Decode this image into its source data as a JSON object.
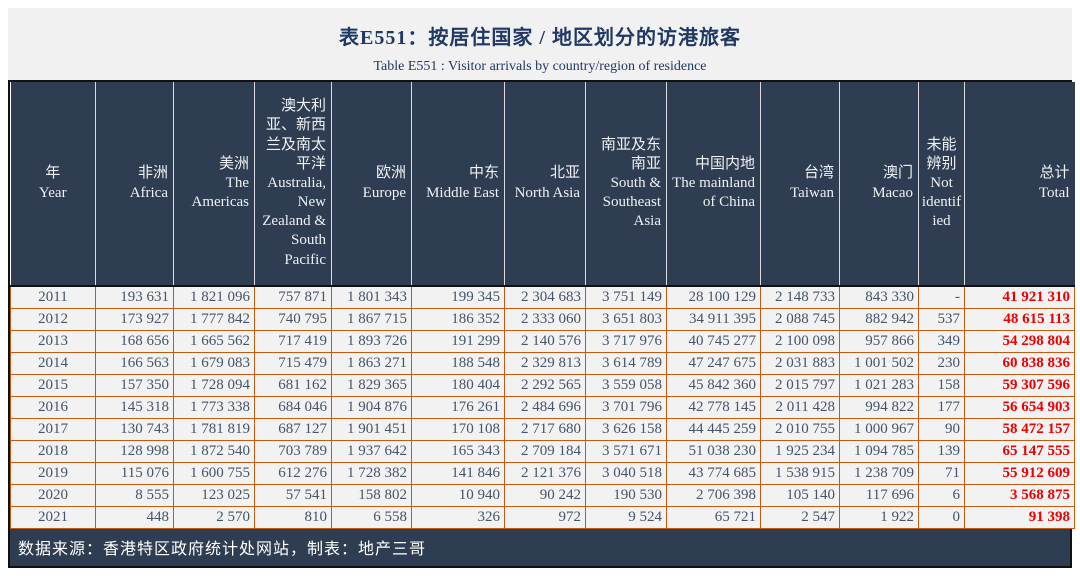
{
  "title": "表E551：按居住国家 / 地区划分的访港旅客",
  "subtitle": "Table E551 : Visitor arrivals by country/region of residence",
  "footer": {
    "text": "数据来源：香港特区政府统计处网站，制表：地产三哥"
  },
  "colors": {
    "header_bg": "#2e3d51",
    "cell_border_orange": "#c55a11",
    "total_text_red": "#ee0000",
    "body_text": "#44546a",
    "title_text": "#1f3864",
    "row_bg": "#f2f2f2",
    "frame_black": "#111111"
  },
  "chart_data": {
    "type": "table",
    "title": "表E551：按居住国家 / 地区划分的访港旅客 — Table E551 : Visitor arrivals by country/region of residence",
    "columns": [
      {
        "zh": "年",
        "en": "Year"
      },
      {
        "zh": "非洲",
        "en": "Africa"
      },
      {
        "zh": "美洲",
        "en": "The Americas"
      },
      {
        "zh": "澳大利亚、新西兰及南太平洋",
        "en": "Australia, New Zealand & South Pacific"
      },
      {
        "zh": "欧洲",
        "en": "Europe"
      },
      {
        "zh": "中东",
        "en": "Middle East"
      },
      {
        "zh": "北亚",
        "en": "North Asia"
      },
      {
        "zh": "南亚及东南亚",
        "en": "South & Southeast Asia"
      },
      {
        "zh": "中国内地",
        "en": "The mainland of China"
      },
      {
        "zh": "台湾",
        "en": "Taiwan"
      },
      {
        "zh": "澳门",
        "en": "Macao"
      },
      {
        "zh": "未能辨别",
        "en": "Not identified"
      },
      {
        "zh": "总计",
        "en": "Total"
      }
    ],
    "rows": [
      [
        "2011",
        "193 631",
        "1 821 096",
        "757 871",
        "1 801 343",
        "199 345",
        "2 304 683",
        "3 751 149",
        "28 100 129",
        "2 148 733",
        "843 330",
        "-",
        "41 921 310"
      ],
      [
        "2012",
        "173 927",
        "1 777 842",
        "740 795",
        "1 867 715",
        "186 352",
        "2 333 060",
        "3 651 803",
        "34 911 395",
        "2 088 745",
        "882 942",
        "537",
        "48 615 113"
      ],
      [
        "2013",
        "168 656",
        "1 665 562",
        "717 419",
        "1 893 726",
        "191 299",
        "2 140 576",
        "3 717 976",
        "40 745 277",
        "2 100 098",
        "957 866",
        "349",
        "54 298 804"
      ],
      [
        "2014",
        "166 563",
        "1 679 083",
        "715 479",
        "1 863 271",
        "188 548",
        "2 329 813",
        "3 614 789",
        "47 247 675",
        "2 031 883",
        "1 001 502",
        "230",
        "60 838 836"
      ],
      [
        "2015",
        "157 350",
        "1 728 094",
        "681 162",
        "1 829 365",
        "180 404",
        "2 292 565",
        "3 559 058",
        "45 842 360",
        "2 015 797",
        "1 021 283",
        "158",
        "59 307 596"
      ],
      [
        "2016",
        "145 318",
        "1 773 338",
        "684 046",
        "1 904 876",
        "176 261",
        "2 484 696",
        "3 701 796",
        "42 778 145",
        "2 011 428",
        "994 822",
        "177",
        "56 654 903"
      ],
      [
        "2017",
        "130 743",
        "1 781 819",
        "687 127",
        "1 901 451",
        "170 108",
        "2 717 680",
        "3 626 158",
        "44 445 259",
        "2 010 755",
        "1 000 967",
        "90",
        "58 472 157"
      ],
      [
        "2018",
        "128 998",
        "1 872 540",
        "703 789",
        "1 937 642",
        "165 343",
        "2 709 184",
        "3 571 671",
        "51 038 230",
        "1 925 234",
        "1 094 785",
        "139",
        "65 147 555"
      ],
      [
        "2019",
        "115 076",
        "1 600 755",
        "612 276",
        "1 728 382",
        "141 846",
        "2 121 376",
        "3 040 518",
        "43 774 685",
        "1 538 915",
        "1 238 709",
        "71",
        "55 912 609"
      ],
      [
        "2020",
        "8 555",
        "123 025",
        "57 541",
        "158 802",
        "10 940",
        "90 242",
        "190 530",
        "2 706 398",
        "105 140",
        "117 696",
        "6",
        "3 568 875"
      ],
      [
        "2021",
        "448",
        "2 570",
        "810",
        "6 558",
        "326",
        "972",
        "9 524",
        "65 721",
        "2 547",
        "1 922",
        "0",
        "91 398"
      ]
    ]
  }
}
